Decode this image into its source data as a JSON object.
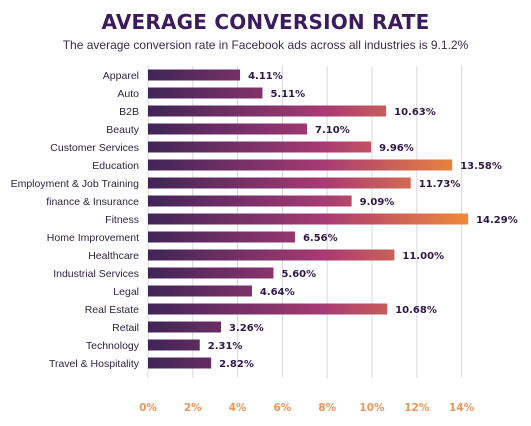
{
  "title": "AVERAGE CONVERSION RATE",
  "subtitle": "The average conversion rate in Facebook ads across all industries is 9.1.2%",
  "colors": {
    "bar_start": "#3f2557",
    "bar_mid": "#a83a74",
    "bar_end": "#f0893a",
    "title": "#3b1a5e",
    "tick": "#e8965a",
    "grid": "#d8d8de"
  },
  "chart_data": {
    "type": "bar",
    "orientation": "horizontal",
    "title": "AVERAGE CONVERSION RATE",
    "subtitle": "The average conversion rate in Facebook ads across all industries is 9.1.2%",
    "categories": [
      "Apparel",
      "Auto",
      "B2B",
      "Beauty",
      "Customer Services",
      "Education",
      "Employment & Job Training",
      "finance & Insurance",
      "Fitness",
      "Home Improvement",
      "Healthcare",
      "Industrial Services",
      "Legal",
      "Real Estate",
      "Retail",
      "Technology",
      "Travel & Hospitality"
    ],
    "values": [
      4.11,
      5.11,
      10.63,
      7.1,
      9.96,
      13.58,
      11.73,
      9.09,
      14.29,
      6.56,
      11.0,
      5.6,
      4.64,
      10.68,
      3.26,
      2.31,
      2.82
    ],
    "value_labels": [
      "4.11%",
      "5.11%",
      "10.63%",
      "7.10%",
      "9.96%",
      "13.58%",
      "11.73%",
      "9.09%",
      "14.29%",
      "6.56%",
      "11.00%",
      "5.60%",
      "4.64%",
      "10.68%",
      "3.26%",
      "2.31%",
      "2.82%"
    ],
    "ticks": [
      0,
      2,
      4,
      6,
      8,
      10,
      12,
      14
    ],
    "tick_labels": [
      "0%",
      "2%",
      "4%",
      "6%",
      "8%",
      "10%",
      "12%",
      "14%"
    ],
    "xlim": [
      0,
      15
    ],
    "grid": true,
    "legend": "none"
  }
}
